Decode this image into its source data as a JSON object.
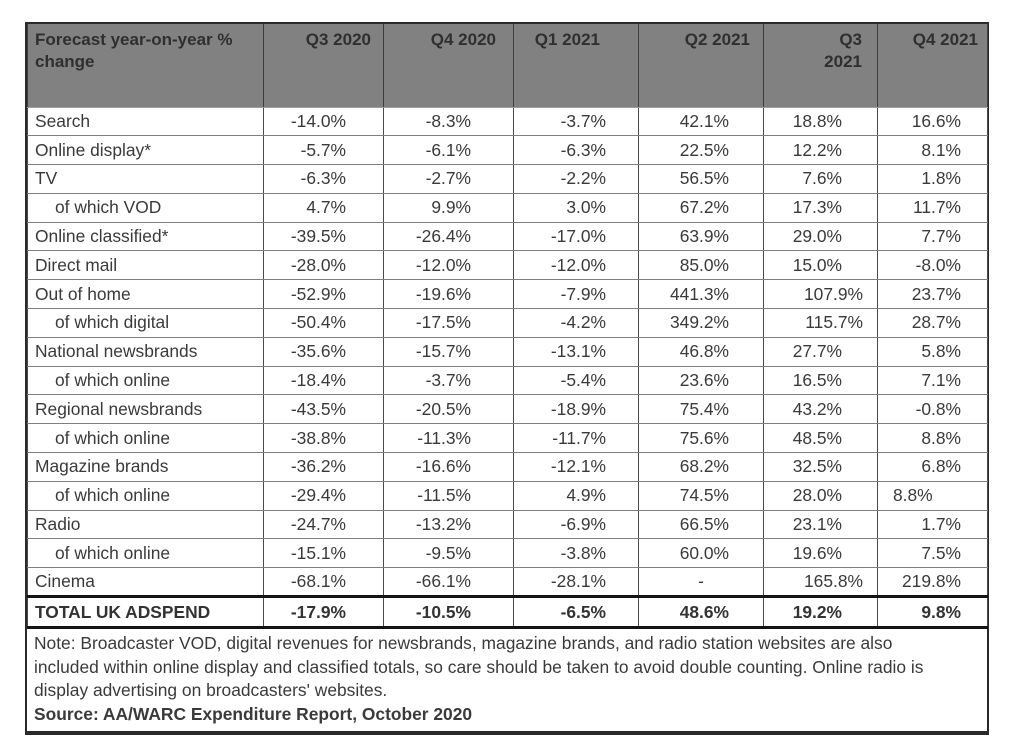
{
  "chart_data": {
    "type": "table",
    "title": "Forecast year-on-year % change",
    "columns": [
      "Q3 2020",
      "Q4 2020",
      "Q1 2021",
      "Q2 2021",
      "Q3 2021",
      "Q4 2021"
    ],
    "rows": [
      {
        "label": "Search",
        "indent": false,
        "values": [
          "-14.0%",
          "-8.3%",
          "-3.7%",
          "42.1%",
          "18.8%",
          "16.6%"
        ]
      },
      {
        "label": "Online display*",
        "indent": false,
        "values": [
          "-5.7%",
          "-6.1%",
          "-6.3%",
          "22.5%",
          "12.2%",
          "8.1%"
        ]
      },
      {
        "label": "TV",
        "indent": false,
        "values": [
          "-6.3%",
          "-2.7%",
          "-2.2%",
          "56.5%",
          "7.6%",
          "1.8%"
        ]
      },
      {
        "label": "of which VOD",
        "indent": true,
        "values": [
          "4.7%",
          "9.9%",
          "3.0%",
          "67.2%",
          "17.3%",
          "11.7%"
        ]
      },
      {
        "label": "Online classified*",
        "indent": false,
        "values": [
          "-39.5%",
          "-26.4%",
          "-17.0%",
          "63.9%",
          "29.0%",
          "7.7%"
        ]
      },
      {
        "label": "Direct mail",
        "indent": false,
        "values": [
          "-28.0%",
          "-12.0%",
          "-12.0%",
          "85.0%",
          "15.0%",
          "-8.0%"
        ]
      },
      {
        "label": "Out of home",
        "indent": false,
        "values": [
          "-52.9%",
          "-19.6%",
          "-7.9%",
          "441.3%",
          "107.9%",
          "23.7%"
        ]
      },
      {
        "label": "of which digital",
        "indent": true,
        "values": [
          "-50.4%",
          "-17.5%",
          "-4.2%",
          "349.2%",
          "115.7%",
          "28.7%"
        ]
      },
      {
        "label": "National newsbrands",
        "indent": false,
        "values": [
          "-35.6%",
          "-15.7%",
          "-13.1%",
          "46.8%",
          "27.7%",
          "5.8%"
        ]
      },
      {
        "label": "of which online",
        "indent": true,
        "values": [
          "-18.4%",
          "-3.7%",
          "-5.4%",
          "23.6%",
          "16.5%",
          "7.1%"
        ]
      },
      {
        "label": "Regional newsbrands",
        "indent": false,
        "values": [
          "-43.5%",
          "-20.5%",
          "-18.9%",
          "75.4%",
          "43.2%",
          "-0.8%"
        ]
      },
      {
        "label": "of which online",
        "indent": true,
        "values": [
          "-38.8%",
          "-11.3%",
          "-11.7%",
          "75.6%",
          "48.5%",
          "8.8%"
        ]
      },
      {
        "label": "Magazine brands",
        "indent": false,
        "values": [
          "-36.2%",
          "-16.6%",
          "-12.1%",
          "68.2%",
          "32.5%",
          "6.8%"
        ]
      },
      {
        "label": "of which online",
        "indent": true,
        "values": [
          "-29.4%",
          "-11.5%",
          "4.9%",
          "74.5%",
          "28.0%",
          "8.8%"
        ]
      },
      {
        "label": "Radio",
        "indent": false,
        "values": [
          "-24.7%",
          "-13.2%",
          "-6.9%",
          "66.5%",
          "23.1%",
          "1.7%"
        ]
      },
      {
        "label": "of which online",
        "indent": true,
        "values": [
          "-15.1%",
          "-9.5%",
          "-3.8%",
          "60.0%",
          "19.6%",
          "7.5%"
        ]
      },
      {
        "label": "Cinema",
        "indent": false,
        "values": [
          "-68.1%",
          "-66.1%",
          "-28.1%",
          "-",
          "165.8%",
          "219.8%"
        ]
      }
    ],
    "total_row": {
      "label": "TOTAL UK ADSPEND",
      "values": [
        "-17.9%",
        "-10.5%",
        "-6.5%",
        "48.6%",
        "19.2%",
        "9.8%"
      ]
    },
    "layout_hints": {
      "legend_position": "none",
      "grid": true,
      "stacked_header_cols": [
        4
      ],
      "wide_value_cells": [
        [
          6,
          4
        ],
        [
          7,
          4
        ],
        [
          16,
          4
        ]
      ],
      "left_align_cells": [
        [
          13,
          5
        ]
      ],
      "center_cells": [
        [
          16,
          3
        ]
      ]
    }
  },
  "note": {
    "text": "Note: Broadcaster VOD, digital revenues for newsbrands, magazine brands, and radio station websites are also included within online display and classified totals, so care should be taken to avoid double counting. Online radio is display advertising on broadcasters' websites.",
    "source": "Source: AA/WARC Expenditure Report, October 2020"
  },
  "colors": {
    "header_bg": "#818181",
    "text": "#3a3a3a",
    "grid_vertical": "#4a4a4a",
    "grid_horizontal": "#7e7e7e",
    "border_outer": "#2a2a2a",
    "total_rule": "#141414"
  }
}
